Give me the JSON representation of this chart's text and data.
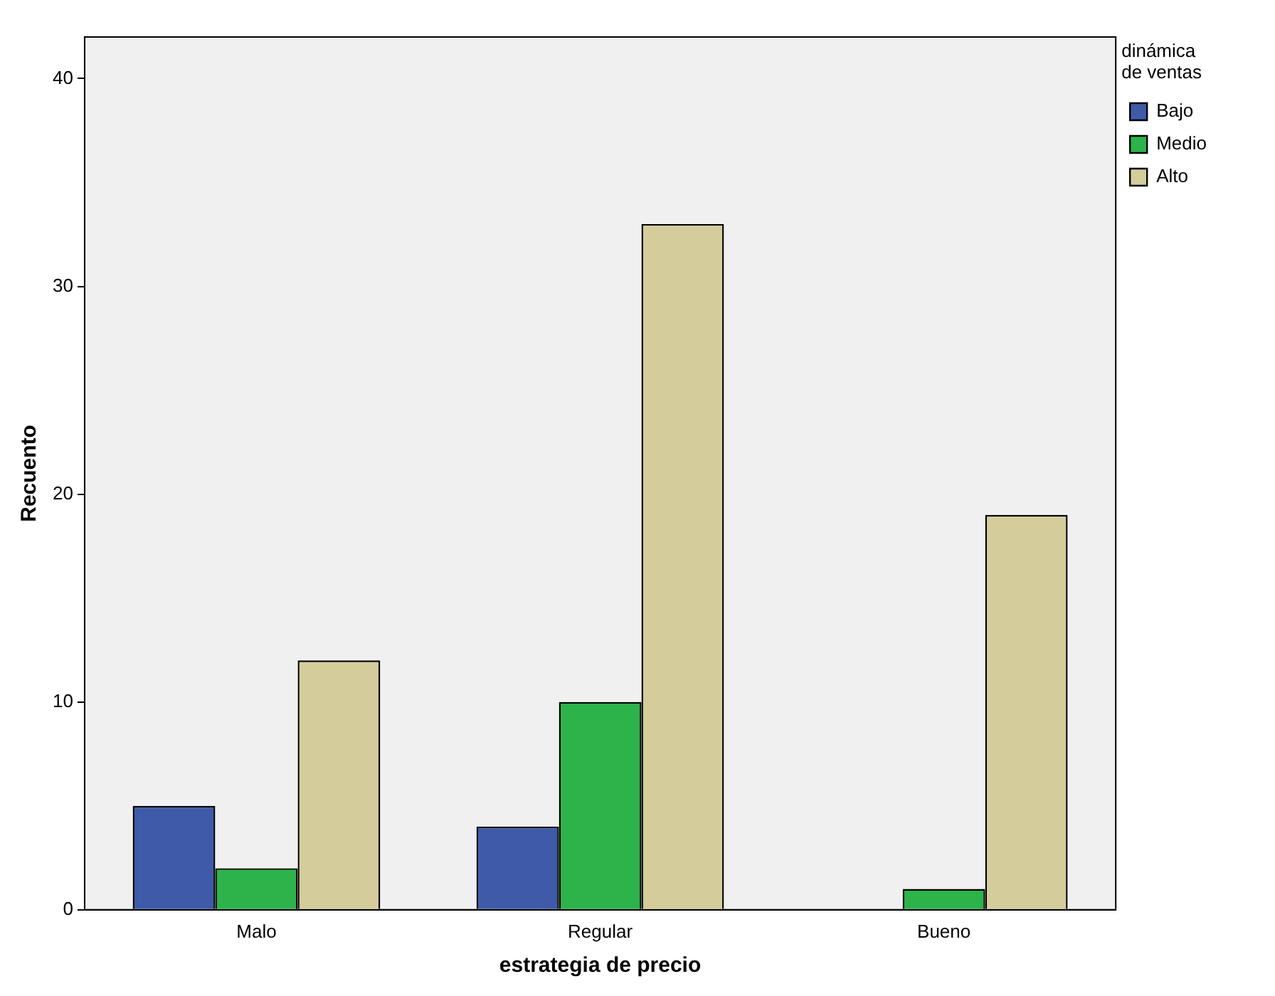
{
  "chart_data": {
    "type": "bar",
    "xlabel": "estrategia de precio",
    "ylabel": "Recuento",
    "legend_title": "dinámica de ventas",
    "categories": [
      "Malo",
      "Regular",
      "Bueno"
    ],
    "series": [
      {
        "name": "Bajo",
        "color": "#3f5aa8",
        "values": [
          5,
          4,
          0
        ]
      },
      {
        "name": "Medio",
        "color": "#2cb34a",
        "values": [
          2,
          10,
          1
        ]
      },
      {
        "name": "Alto",
        "color": "#d4cc9a",
        "values": [
          12,
          33,
          19
        ]
      }
    ],
    "ylim": [
      0,
      42
    ],
    "yticks": [
      0,
      10,
      20,
      30,
      40
    ],
    "grid": false,
    "legend": "top right"
  }
}
